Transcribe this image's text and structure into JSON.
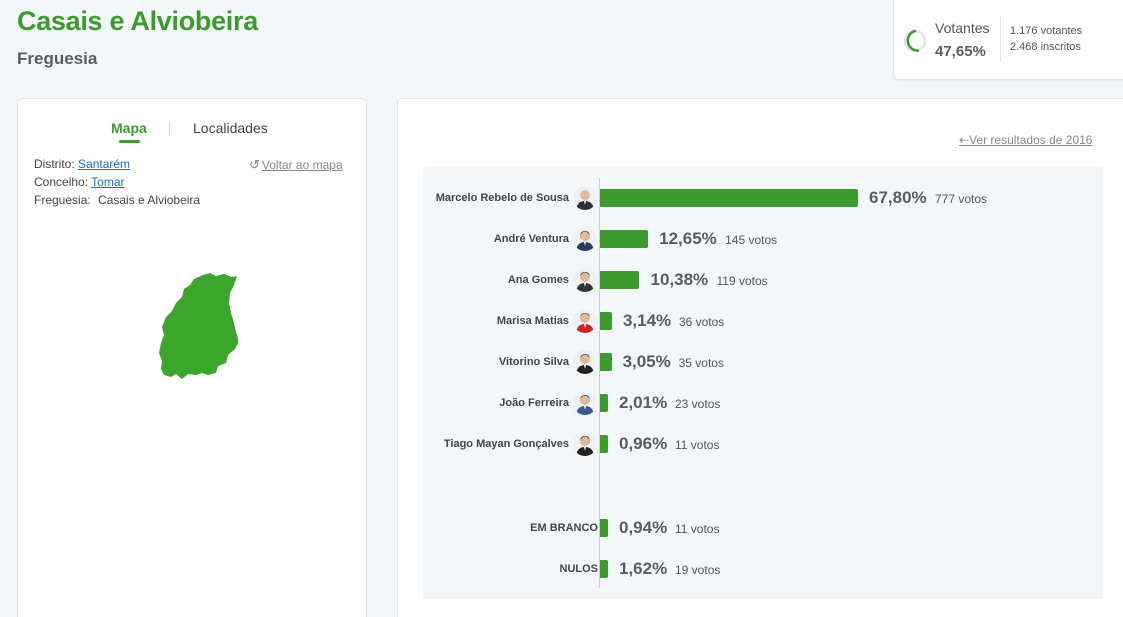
{
  "header": {
    "title": "Casais e Alviobeira",
    "subtitle": "Freguesia"
  },
  "turnout": {
    "label": "Votantes",
    "percent": "47,65%",
    "percent_value": 47.65,
    "voters": "1.176 votantes",
    "registered": "2.468 inscritos"
  },
  "left_panel": {
    "tabs": [
      {
        "label": "Mapa",
        "active": true
      },
      {
        "label": "Localidades",
        "active": false
      }
    ],
    "district_label": "Distrito:",
    "district_value": "Santarém",
    "council_label": "Concelho:",
    "council_value": "Tomar",
    "parish_label": "Freguesia:",
    "parish_value": "Casais e Alviobeira",
    "back_to_map": "Voltar ao mapa"
  },
  "results": {
    "see_previous": "Ver resultados de 2016",
    "candidates": [
      {
        "name": "Marcelo Rebelo de Sousa",
        "percent": "67,80%",
        "value": 67.8,
        "votes": "777 votos"
      },
      {
        "name": "André Ventura",
        "percent": "12,65%",
        "value": 12.65,
        "votes": "145 votos"
      },
      {
        "name": "Ana Gomes",
        "percent": "10,38%",
        "value": 10.38,
        "votes": "119 votos"
      },
      {
        "name": "Marisa Matias",
        "percent": "3,14%",
        "value": 3.14,
        "votes": "36 votos"
      },
      {
        "name": "Vitorino Silva",
        "percent": "3,05%",
        "value": 3.05,
        "votes": "35 votos"
      },
      {
        "name": "João Ferreira",
        "percent": "2,01%",
        "value": 2.01,
        "votes": "23 votos"
      },
      {
        "name": "Tiago Mayan Gonçalves",
        "percent": "0,96%",
        "value": 0.96,
        "votes": "11 votos"
      }
    ],
    "other": [
      {
        "name": "EM BRANCO",
        "percent": "0,94%",
        "value": 0.94,
        "votes": "11 votos"
      },
      {
        "name": "NULOS",
        "percent": "1,62%",
        "value": 1.62,
        "votes": "19 votos"
      }
    ]
  },
  "colors": {
    "accent": "#3c9b2c",
    "title": "#3c9b2c",
    "link": "#1a6fd0"
  }
}
